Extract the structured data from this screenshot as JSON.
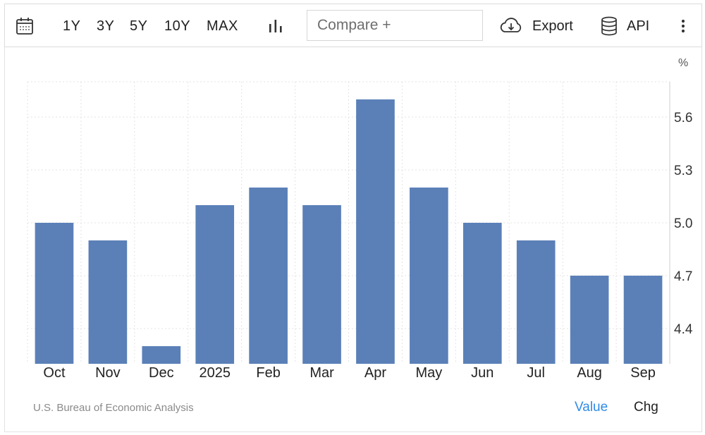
{
  "toolbar": {
    "ranges": [
      "1Y",
      "3Y",
      "5Y",
      "10Y",
      "MAX"
    ],
    "compare_placeholder": "Compare +",
    "export_label": "Export",
    "api_label": "API",
    "icons": {
      "calendar": "calendar-icon",
      "chart_type": "bar-chart-icon",
      "export": "cloud-download-icon",
      "api": "database-icon",
      "more": "more-vertical-icon"
    }
  },
  "chart_data": {
    "type": "bar",
    "categories": [
      "Oct",
      "Nov",
      "Dec",
      "2025",
      "Feb",
      "Mar",
      "Apr",
      "May",
      "Jun",
      "Jul",
      "Aug",
      "Sep"
    ],
    "values": [
      5.0,
      4.9,
      4.3,
      5.1,
      5.2,
      5.1,
      5.7,
      5.2,
      5.0,
      4.9,
      4.7,
      4.7
    ],
    "unit": "%",
    "yticks": [
      4.4,
      4.7,
      5.0,
      5.3,
      5.6
    ],
    "ylim": [
      4.2,
      5.8
    ],
    "grid": true,
    "y_axis_side": "right",
    "bar_color": "#5b80b8"
  },
  "footer": {
    "source": "U.S. Bureau of Economic Analysis",
    "tab_value": "Value",
    "tab_chg": "Chg",
    "active_tab_color": "#2f8be6"
  }
}
